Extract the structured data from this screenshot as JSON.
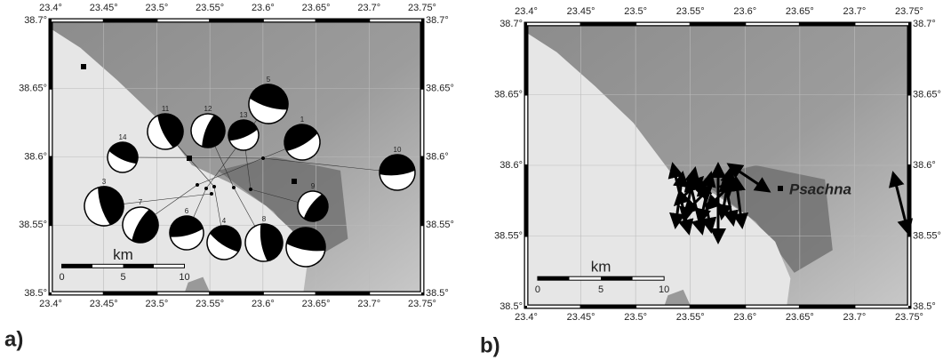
{
  "panels": [
    {
      "label": "a)",
      "lon_ticks": [
        "23.4°",
        "23.45°",
        "23.5°",
        "23.55°",
        "23.6°",
        "23.65°",
        "23.7°",
        "23.75°"
      ],
      "lat_ticks": [
        "38.7°",
        "38.65°",
        "38.6°",
        "38.55°",
        "38.5°"
      ],
      "scale": {
        "unit": "km",
        "ticks": [
          "0",
          "5",
          "10"
        ]
      },
      "events": [
        "1",
        "5",
        "11",
        "12",
        "13",
        "14",
        "3",
        "7",
        "6",
        "4",
        "8",
        "9",
        "10"
      ]
    },
    {
      "label": "b)",
      "lon_ticks": [
        "23.4°",
        "23.45°",
        "23.5°",
        "23.55°",
        "23.6°",
        "23.65°",
        "23.7°",
        "23.75°"
      ],
      "lat_ticks": [
        "38.7°",
        "38.65°",
        "38.6°",
        "38.55°",
        "38.5°"
      ],
      "scale": {
        "unit": "km",
        "ticks": [
          "0",
          "5",
          "10"
        ]
      },
      "place": "Psachna"
    }
  ]
}
